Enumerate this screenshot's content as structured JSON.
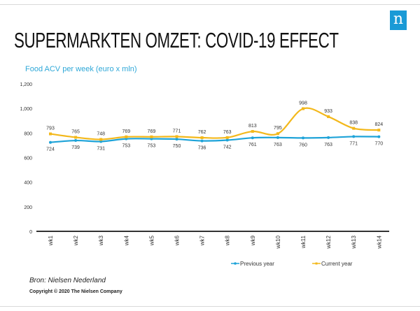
{
  "page": {
    "title": "SUPERMARKTEN OMZET: COVID-19 EFFECT",
    "logo_letter": "n",
    "source": "Bron: Nielsen Nederland",
    "copyright": "Copyright © 2020 The Nielsen Company"
  },
  "colors": {
    "brand": "#1a9ad6",
    "previous_year": "#1ea3d8",
    "current_year": "#f3b81b",
    "axis": "#333333"
  },
  "chart_data": {
    "type": "line",
    "title": "Food ACV per week (euro x mln)",
    "xlabel": "",
    "ylabel": "",
    "categories": [
      "wk1",
      "wk2",
      "wk3",
      "wk4",
      "wk5",
      "wk6",
      "wk7",
      "wk8",
      "wk9",
      "wk10",
      "wk11",
      "wk12",
      "wk13",
      "wk14"
    ],
    "yticks": [
      0,
      200,
      400,
      600,
      800,
      1000,
      1200
    ],
    "ytick_labels": [
      "0",
      "200",
      "400",
      "600",
      "800",
      "1,000",
      "1,200"
    ],
    "ylim": [
      0,
      1200
    ],
    "grid": false,
    "legend": "bottom-right",
    "series": [
      {
        "name": "Previous year",
        "values": [
          724,
          739,
          731,
          753,
          753,
          750,
          736,
          742,
          761,
          763,
          760,
          763,
          771,
          770
        ]
      },
      {
        "name": "Current year",
        "values": [
          793,
          765,
          748,
          769,
          769,
          771,
          762,
          763,
          813,
          795,
          998,
          933,
          838,
          824
        ]
      }
    ]
  }
}
